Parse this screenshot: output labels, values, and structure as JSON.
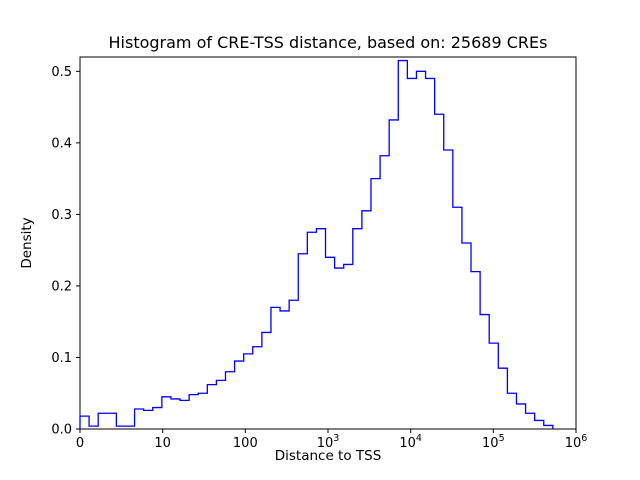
{
  "chart_data": {
    "type": "histogram",
    "subtype": "step-outline",
    "title": "Histogram of CRE-TSS distance, based on: 25689 CREs",
    "xlabel": "Distance to TSS",
    "ylabel": "Density",
    "n_samples": 25689,
    "x_scale": "log10 (leftmost tick labeled 0 sits at 10^0)",
    "grid": false,
    "legend": null,
    "line_color": "#0000ff",
    "axis_color": "#000000",
    "background_color": "#ffffff",
    "xlim_log10": [
      0,
      6
    ],
    "ylim": [
      0,
      0.52
    ],
    "bin_start_log10": 0,
    "bin_width_log10": 0.11,
    "densities": [
      0.018,
      0.004,
      0.022,
      0.022,
      0.004,
      0.004,
      0.028,
      0.026,
      0.03,
      0.045,
      0.042,
      0.04,
      0.048,
      0.05,
      0.062,
      0.068,
      0.08,
      0.095,
      0.105,
      0.115,
      0.135,
      0.17,
      0.165,
      0.18,
      0.245,
      0.275,
      0.28,
      0.24,
      0.225,
      0.23,
      0.28,
      0.305,
      0.35,
      0.382,
      0.432,
      0.515,
      0.49,
      0.5,
      0.49,
      0.44,
      0.39,
      0.31,
      0.26,
      0.22,
      0.16,
      0.12,
      0.085,
      0.05,
      0.035,
      0.022,
      0.012,
      0.005
    ],
    "x_ticks": [
      {
        "pos": 0,
        "label": "0"
      },
      {
        "pos": 1,
        "label": "10"
      },
      {
        "pos": 2,
        "label": "100"
      },
      {
        "pos": 3,
        "label": "10",
        "exp": "3"
      },
      {
        "pos": 4,
        "label": "10",
        "exp": "4"
      },
      {
        "pos": 5,
        "label": "10",
        "exp": "5"
      },
      {
        "pos": 6,
        "label": "10",
        "exp": "6"
      }
    ],
    "y_ticks": [
      {
        "pos": 0.0,
        "label": "0.0"
      },
      {
        "pos": 0.1,
        "label": "0.1"
      },
      {
        "pos": 0.2,
        "label": "0.2"
      },
      {
        "pos": 0.3,
        "label": "0.3"
      },
      {
        "pos": 0.4,
        "label": "0.4"
      },
      {
        "pos": 0.5,
        "label": "0.5"
      }
    ]
  }
}
